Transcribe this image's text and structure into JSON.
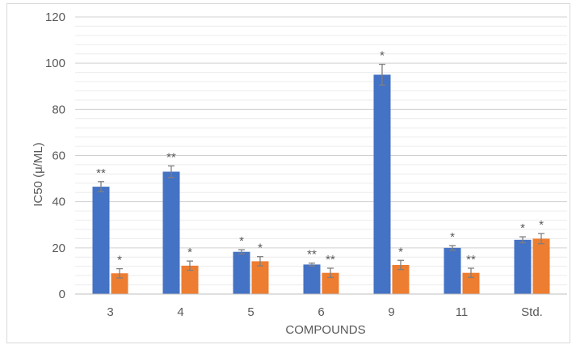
{
  "chart_data": {
    "type": "bar",
    "xlabel": "COMPOUNDS",
    "ylabel": "IC50 (μ/ML)",
    "ylim": [
      0,
      120
    ],
    "yticks": [
      0,
      20,
      40,
      60,
      80,
      100,
      120
    ],
    "grid": true,
    "categories": [
      "3",
      "4",
      "5",
      "6",
      "9",
      "11",
      "Std."
    ],
    "series": [
      {
        "color": "#4472c4",
        "values": [
          46.5,
          53,
          18.3,
          12.8,
          95,
          20,
          23.5
        ],
        "errors": [
          2.2,
          2.5,
          0.9,
          0.6,
          4.5,
          1.0,
          1.3
        ],
        "annotations": [
          "**",
          "**",
          "*",
          "**",
          "*",
          "*",
          "*"
        ]
      },
      {
        "color": "#ed7d31",
        "values": [
          9,
          12.3,
          14.2,
          9.2,
          12.6,
          9.2,
          24
        ],
        "errors": [
          2.0,
          2.0,
          2.0,
          2.0,
          2.0,
          2.0,
          2.2
        ],
        "annotations": [
          "*",
          "*",
          "*",
          "**",
          "*",
          "**",
          "*"
        ]
      }
    ],
    "gridline_color": "#d9d9d9",
    "error_bar_color": "#7f7f7f"
  }
}
